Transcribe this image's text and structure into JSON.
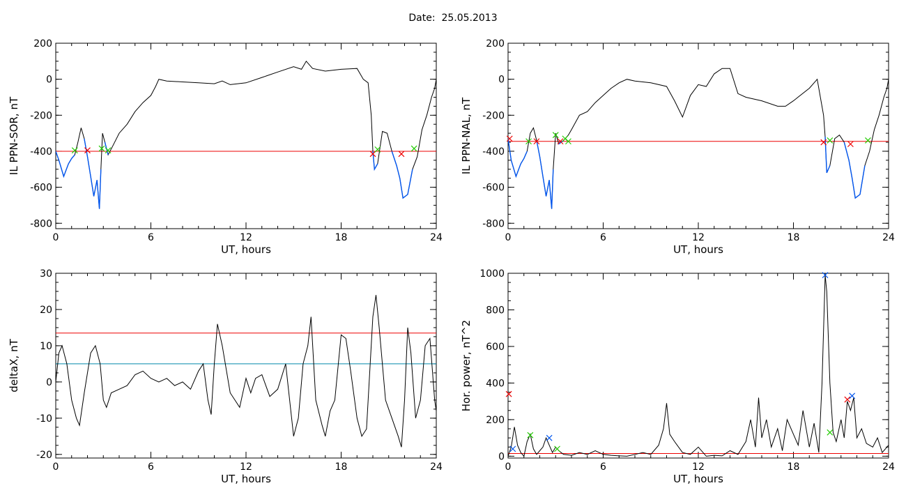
{
  "header": {
    "label": "Date:",
    "value": "25.05.2013"
  },
  "colors": {
    "signal": "#000000",
    "substorm": "#0055ee",
    "threshold_red": "#ee0000",
    "threshold_teal": "#0088aa",
    "marker_green": "#22cc00"
  },
  "chart_data": [
    {
      "type": "line",
      "xlabel": "UT, hours",
      "ylabel": "IL PPN-SOR, nT",
      "xlim": [
        0,
        24
      ],
      "ylim": [
        -830,
        200
      ],
      "xticks": [
        0,
        6,
        12,
        18,
        24
      ],
      "yticks": [
        -800,
        -600,
        -400,
        -200,
        0,
        200
      ],
      "grid": false,
      "series": [
        {
          "role": "signal",
          "x": [
            0,
            0.2,
            0.5,
            0.8,
            1.0,
            1.2,
            1.4,
            1.6,
            1.8,
            2.0,
            2.2,
            2.4,
            2.6,
            2.75,
            2.85,
            2.95,
            3.1,
            3.3,
            3.6,
            4.0,
            4.5,
            5.0,
            5.5,
            6.0,
            6.3,
            6.5,
            7.0,
            8.0,
            9.0,
            10.0,
            10.5,
            11.0,
            12.0,
            13.0,
            14.0,
            15.0,
            15.5,
            15.8,
            16.2,
            17.0,
            18.0,
            19.0,
            19.4,
            19.7,
            19.9,
            20.0,
            20.1,
            20.3,
            20.6,
            20.9,
            21.2,
            21.5,
            21.7,
            21.9,
            22.2,
            22.5,
            22.8,
            23.1,
            23.4,
            23.7,
            23.9,
            24.0
          ],
          "y": [
            -400,
            -450,
            -540,
            -470,
            -440,
            -420,
            -350,
            -270,
            -330,
            -430,
            -540,
            -650,
            -560,
            -720,
            -500,
            -300,
            -350,
            -420,
            -370,
            -300,
            -250,
            -180,
            -130,
            -90,
            -40,
            0,
            -10,
            -15,
            -20,
            -25,
            -10,
            -30,
            -20,
            10,
            40,
            70,
            55,
            100,
            60,
            45,
            55,
            60,
            0,
            -20,
            -200,
            -400,
            -500,
            -470,
            -290,
            -300,
            -400,
            -480,
            -550,
            -660,
            -640,
            -500,
            -430,
            -280,
            -200,
            -100,
            -50,
            0
          ]
        },
        {
          "role": "substorm",
          "segments": [
            {
              "x": [
                0,
                0.2,
                0.5,
                0.8,
                1.0,
                1.2
              ],
              "y": [
                -400,
                -450,
                -540,
                -470,
                -440,
                -420
              ]
            },
            {
              "x": [
                1.8,
                2.0,
                2.2,
                2.4,
                2.6,
                2.75,
                2.85
              ],
              "y": [
                -330,
                -430,
                -540,
                -650,
                -560,
                -720,
                -500
              ]
            },
            {
              "x": [
                3.1,
                3.3
              ],
              "y": [
                -350,
                -420
              ]
            },
            {
              "x": [
                20.0,
                20.1,
                20.3
              ],
              "y": [
                -400,
                -500,
                -470
              ]
            },
            {
              "x": [
                21.2,
                21.5,
                21.7,
                21.9,
                22.2,
                22.5
              ],
              "y": [
                -400,
                -480,
                -550,
                -660,
                -640,
                -500
              ]
            }
          ]
        }
      ],
      "hlines": [
        {
          "y": -400,
          "color": "red"
        }
      ],
      "markers": [
        {
          "x": 1.2,
          "y": -395,
          "color": "green"
        },
        {
          "x": 2.0,
          "y": -395,
          "color": "red"
        },
        {
          "x": 2.9,
          "y": -385,
          "color": "green"
        },
        {
          "x": 3.3,
          "y": -395,
          "color": "green"
        },
        {
          "x": 20.0,
          "y": -415,
          "color": "red"
        },
        {
          "x": 20.3,
          "y": -390,
          "color": "green"
        },
        {
          "x": 21.8,
          "y": -415,
          "color": "red"
        },
        {
          "x": 22.6,
          "y": -385,
          "color": "green"
        }
      ]
    },
    {
      "type": "line",
      "xlabel": "UT, hours",
      "ylabel": "IL PPN-NAL, nT",
      "xlim": [
        0,
        24
      ],
      "ylim": [
        -830,
        200
      ],
      "xticks": [
        0,
        6,
        12,
        18,
        24
      ],
      "yticks": [
        -800,
        -600,
        -400,
        -200,
        0,
        200
      ],
      "grid": false,
      "series": [
        {
          "role": "signal",
          "x": [
            0,
            0.2,
            0.5,
            0.8,
            1.0,
            1.2,
            1.4,
            1.6,
            1.8,
            2.0,
            2.2,
            2.4,
            2.6,
            2.75,
            2.85,
            3.0,
            3.2,
            3.5,
            3.8,
            4.0,
            4.5,
            5.0,
            5.5,
            6.0,
            6.5,
            7.0,
            7.5,
            8.0,
            9.0,
            10.0,
            10.5,
            11.0,
            11.5,
            12.0,
            12.5,
            13.0,
            13.5,
            14.0,
            14.5,
            15.0,
            16.0,
            17.0,
            17.5,
            18.0,
            19.0,
            19.5,
            19.9,
            20.0,
            20.1,
            20.3,
            20.6,
            20.9,
            21.2,
            21.5,
            21.7,
            21.9,
            22.2,
            22.5,
            22.8,
            23.1,
            23.4,
            23.7,
            23.9,
            24.0
          ],
          "y": [
            -330,
            -450,
            -540,
            -470,
            -440,
            -400,
            -300,
            -270,
            -340,
            -430,
            -540,
            -650,
            -560,
            -720,
            -500,
            -300,
            -360,
            -340,
            -310,
            -280,
            -200,
            -180,
            -130,
            -90,
            -50,
            -20,
            0,
            -10,
            -20,
            -40,
            -120,
            -210,
            -90,
            -30,
            -40,
            30,
            60,
            60,
            -80,
            -100,
            -120,
            -150,
            -150,
            -120,
            -50,
            0,
            -200,
            -320,
            -520,
            -480,
            -330,
            -310,
            -350,
            -450,
            -550,
            -660,
            -640,
            -480,
            -400,
            -280,
            -200,
            -100,
            -50,
            0
          ]
        },
        {
          "role": "substorm",
          "segments": [
            {
              "x": [
                0,
                0.2,
                0.5,
                0.8,
                1.0,
                1.2
              ],
              "y": [
                -330,
                -450,
                -540,
                -470,
                -440,
                -400
              ]
            },
            {
              "x": [
                1.8,
                2.0,
                2.2,
                2.4,
                2.6,
                2.75,
                2.85
              ],
              "y": [
                -340,
                -430,
                -540,
                -650,
                -560,
                -720,
                -500
              ]
            },
            {
              "x": [
                3.2,
                3.5
              ],
              "y": [
                -360,
                -340
              ]
            },
            {
              "x": [
                20.0,
                20.1,
                20.3
              ],
              "y": [
                -320,
                -520,
                -480
              ]
            },
            {
              "x": [
                21.2,
                21.5,
                21.7,
                21.9,
                22.2,
                22.5
              ],
              "y": [
                -350,
                -450,
                -550,
                -660,
                -640,
                -480
              ]
            }
          ]
        }
      ],
      "hlines": [
        {
          "y": -345,
          "color": "red"
        }
      ],
      "markers": [
        {
          "x": 0.1,
          "y": -330,
          "color": "red"
        },
        {
          "x": 1.3,
          "y": -345,
          "color": "green"
        },
        {
          "x": 1.8,
          "y": -345,
          "color": "red"
        },
        {
          "x": 3.0,
          "y": -310,
          "color": "green"
        },
        {
          "x": 3.3,
          "y": -345,
          "color": "red"
        },
        {
          "x": 3.6,
          "y": -330,
          "color": "green"
        },
        {
          "x": 3.8,
          "y": -345,
          "color": "green"
        },
        {
          "x": 19.9,
          "y": -350,
          "color": "red"
        },
        {
          "x": 20.3,
          "y": -340,
          "color": "green"
        },
        {
          "x": 21.6,
          "y": -360,
          "color": "red"
        },
        {
          "x": 22.7,
          "y": -340,
          "color": "green"
        }
      ]
    },
    {
      "type": "line",
      "xlabel": "UT, hours",
      "ylabel": "deltaX, nT",
      "xlim": [
        0,
        24
      ],
      "ylim": [
        -21,
        30
      ],
      "xticks": [
        0,
        6,
        12,
        18,
        24
      ],
      "yticks": [
        -20,
        -10,
        0,
        10,
        20,
        30
      ],
      "grid": false,
      "series": [
        {
          "role": "signal",
          "x": [
            0,
            0.2,
            0.4,
            0.7,
            1.0,
            1.3,
            1.5,
            1.8,
            2.2,
            2.5,
            2.8,
            3.0,
            3.2,
            3.5,
            4.0,
            4.5,
            5.0,
            5.5,
            6.0,
            6.5,
            7.0,
            7.5,
            8.0,
            8.5,
            9.0,
            9.3,
            9.6,
            9.8,
            10.0,
            10.2,
            10.5,
            11.0,
            11.3,
            11.6,
            12.0,
            12.3,
            12.6,
            13.0,
            13.5,
            14.0,
            14.5,
            15.0,
            15.3,
            15.6,
            15.9,
            16.1,
            16.4,
            16.8,
            17.0,
            17.3,
            17.6,
            18.0,
            18.3,
            18.6,
            19.0,
            19.3,
            19.6,
            20.0,
            20.2,
            20.4,
            20.8,
            21.2,
            21.6,
            21.8,
            22.0,
            22.2,
            22.4,
            22.7,
            23.0,
            23.3,
            23.6,
            23.9,
            24.0
          ],
          "y": [
            0,
            8,
            10,
            5,
            -5,
            -10,
            -12,
            -3,
            8,
            10,
            5,
            -5,
            -7,
            -3,
            -2,
            -1,
            2,
            3,
            1,
            0,
            1,
            -1,
            0,
            -2,
            3,
            5,
            -5,
            -9,
            5,
            16,
            10,
            -3,
            -5,
            -7,
            1,
            -3,
            1,
            2,
            -4,
            -2,
            5,
            -15,
            -10,
            5,
            10,
            18,
            -5,
            -12,
            -15,
            -8,
            -5,
            13,
            12,
            3,
            -10,
            -15,
            -13,
            18,
            24,
            15,
            -5,
            -10,
            -15,
            -18,
            -5,
            15,
            8,
            -10,
            -5,
            10,
            12,
            -5,
            -8
          ]
        }
      ],
      "hlines": [
        {
          "y": 13.5,
          "color": "red"
        },
        {
          "y": 5,
          "color": "teal"
        }
      ],
      "markers": []
    },
    {
      "type": "line",
      "xlabel": "UT, hours",
      "ylabel": "Hor. power, nT^2",
      "xlim": [
        0,
        24
      ],
      "ylim": [
        -10,
        1000
      ],
      "xticks": [
        0,
        6,
        12,
        18,
        24
      ],
      "yticks": [
        0,
        200,
        400,
        600,
        800,
        1000
      ],
      "grid": false,
      "series": [
        {
          "role": "signal",
          "x": [
            0,
            0.2,
            0.4,
            0.6,
            0.8,
            1.0,
            1.2,
            1.4,
            1.6,
            1.8,
            2.0,
            2.2,
            2.4,
            2.6,
            2.8,
            3.0,
            3.2,
            3.5,
            4.0,
            4.5,
            5.0,
            5.5,
            6.0,
            6.5,
            7.0,
            7.5,
            8.0,
            8.5,
            9.0,
            9.5,
            9.8,
            10.0,
            10.2,
            10.5,
            11.0,
            11.5,
            12.0,
            12.5,
            13.0,
            13.5,
            14.0,
            14.5,
            15.0,
            15.3,
            15.6,
            15.8,
            16.0,
            16.3,
            16.6,
            17.0,
            17.3,
            17.6,
            18.0,
            18.3,
            18.6,
            19.0,
            19.3,
            19.6,
            19.8,
            20.0,
            20.1,
            20.3,
            20.5,
            20.7,
            21.0,
            21.2,
            21.4,
            21.6,
            21.8,
            22.0,
            22.3,
            22.6,
            23.0,
            23.3,
            23.6,
            24.0
          ],
          "y": [
            0,
            50,
            160,
            60,
            20,
            0,
            80,
            120,
            40,
            10,
            30,
            50,
            100,
            60,
            20,
            50,
            30,
            10,
            5,
            20,
            10,
            30,
            10,
            5,
            2,
            0,
            10,
            20,
            10,
            60,
            150,
            290,
            120,
            80,
            20,
            10,
            50,
            0,
            5,
            2,
            30,
            10,
            80,
            200,
            50,
            320,
            100,
            200,
            50,
            150,
            30,
            200,
            120,
            60,
            250,
            50,
            180,
            20,
            400,
            990,
            900,
            400,
            130,
            80,
            200,
            100,
            300,
            250,
            320,
            100,
            150,
            70,
            50,
            100,
            20,
            60
          ]
        }
      ],
      "hlines": [
        {
          "y": 15,
          "color": "red"
        }
      ],
      "markers": [
        {
          "x": 0.05,
          "y": 340,
          "color": "red"
        },
        {
          "x": 0.3,
          "y": 40,
          "color": "blue"
        },
        {
          "x": 1.4,
          "y": 115,
          "color": "green"
        },
        {
          "x": 2.6,
          "y": 100,
          "color": "blue"
        },
        {
          "x": 3.1,
          "y": 40,
          "color": "green"
        },
        {
          "x": 20.0,
          "y": 990,
          "color": "blue"
        },
        {
          "x": 20.3,
          "y": 130,
          "color": "green"
        },
        {
          "x": 21.4,
          "y": 310,
          "color": "red"
        },
        {
          "x": 21.7,
          "y": 330,
          "color": "blue"
        }
      ]
    }
  ]
}
